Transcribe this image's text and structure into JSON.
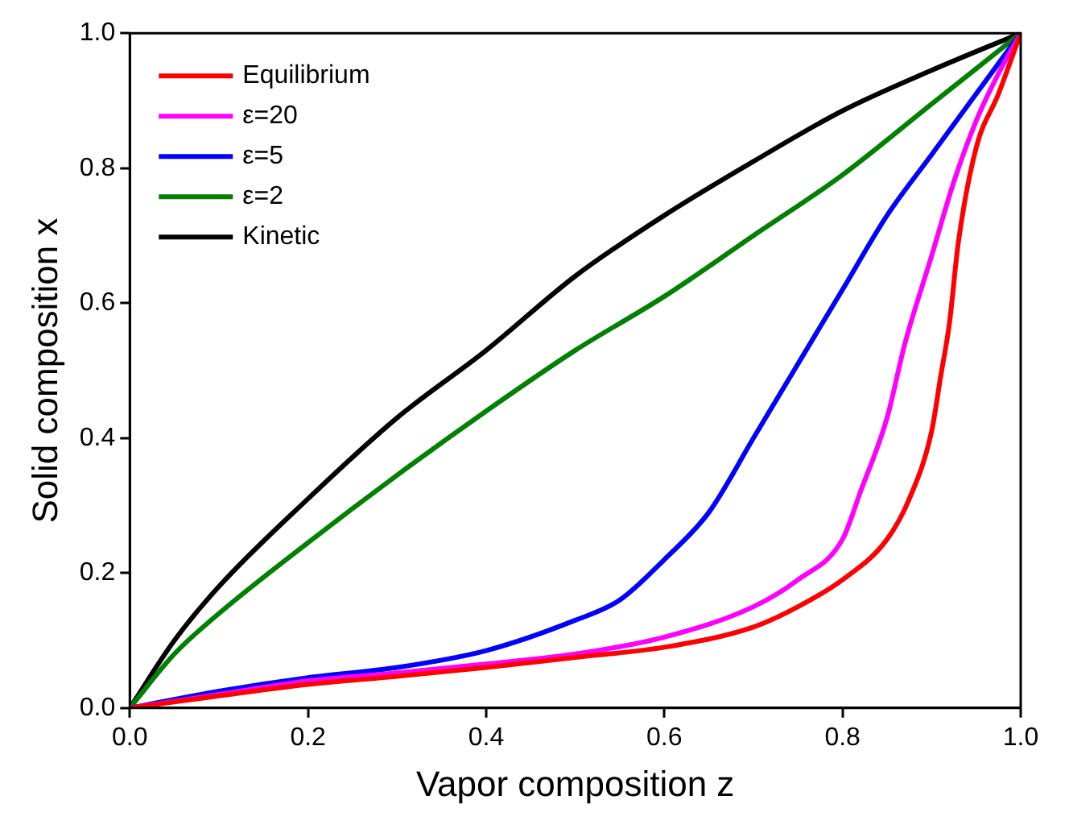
{
  "chart_data": {
    "type": "line",
    "xlabel": "Vapor composition z",
    "ylabel": "Solid composition x",
    "xlim": [
      0,
      1
    ],
    "ylim": [
      0,
      1
    ],
    "xticks": [
      {
        "value": 0,
        "label": "0.0"
      },
      {
        "value": 0.2,
        "label": "0.2"
      },
      {
        "value": 0.4,
        "label": "0.4"
      },
      {
        "value": 0.6,
        "label": "0.6"
      },
      {
        "value": 0.8,
        "label": "0.8"
      },
      {
        "value": 1,
        "label": "1.0"
      }
    ],
    "yticks": [
      {
        "value": 0,
        "label": "0.0"
      },
      {
        "value": 0.2,
        "label": "0.2"
      },
      {
        "value": 0.4,
        "label": "0.4"
      },
      {
        "value": 0.6,
        "label": "0.6"
      },
      {
        "value": 0.8,
        "label": "0.8"
      },
      {
        "value": 1,
        "label": "1.0"
      }
    ],
    "grid": false,
    "legend": "top left",
    "marker": "none",
    "line_style": "solid",
    "series": [
      {
        "name": "Equilibrium",
        "color": "#ff0000",
        "x": [
          0,
          0.1,
          0.2,
          0.3,
          0.4,
          0.5,
          0.6,
          0.7,
          0.75,
          0.8,
          0.85,
          0.875,
          0.9,
          0.91,
          0.92,
          0.93,
          0.95,
          0.975,
          1
        ],
        "values": [
          0,
          0.018,
          0.035,
          0.047,
          0.06,
          0.075,
          0.09,
          0.12,
          0.15,
          0.19,
          0.25,
          0.31,
          0.41,
          0.49,
          0.57,
          0.69,
          0.83,
          0.91,
          1
        ]
      },
      {
        "name": "ε=20",
        "color": "#ff00ff",
        "x": [
          0,
          0.1,
          0.2,
          0.3,
          0.4,
          0.5,
          0.6,
          0.7,
          0.75,
          0.8,
          0.82,
          0.85,
          0.87,
          0.9,
          0.925,
          0.95,
          0.975,
          1
        ],
        "values": [
          0,
          0.02,
          0.04,
          0.052,
          0.065,
          0.08,
          0.105,
          0.15,
          0.19,
          0.25,
          0.32,
          0.43,
          0.54,
          0.67,
          0.78,
          0.87,
          0.94,
          1
        ]
      },
      {
        "name": "ε=5",
        "color": "#0000ff",
        "x": [
          0,
          0.1,
          0.2,
          0.3,
          0.4,
          0.5,
          0.55,
          0.6,
          0.65,
          0.7,
          0.75,
          0.8,
          0.85,
          0.9,
          0.95,
          1
        ],
        "values": [
          0,
          0.025,
          0.045,
          0.06,
          0.085,
          0.13,
          0.16,
          0.22,
          0.29,
          0.4,
          0.51,
          0.62,
          0.73,
          0.82,
          0.91,
          1
        ]
      },
      {
        "name": "ε=2",
        "color": "#008000",
        "x": [
          0,
          0.05,
          0.1,
          0.2,
          0.3,
          0.4,
          0.5,
          0.6,
          0.7,
          0.8,
          0.9,
          1
        ],
        "values": [
          0,
          0.08,
          0.14,
          0.245,
          0.345,
          0.44,
          0.53,
          0.61,
          0.7,
          0.79,
          0.895,
          1
        ]
      },
      {
        "name": "Kinetic",
        "color": "#000000",
        "x": [
          0,
          0.05,
          0.1,
          0.2,
          0.3,
          0.4,
          0.5,
          0.6,
          0.7,
          0.8,
          0.9,
          1
        ],
        "values": [
          0,
          0.1,
          0.18,
          0.31,
          0.43,
          0.53,
          0.64,
          0.73,
          0.81,
          0.885,
          0.945,
          1
        ]
      }
    ]
  }
}
